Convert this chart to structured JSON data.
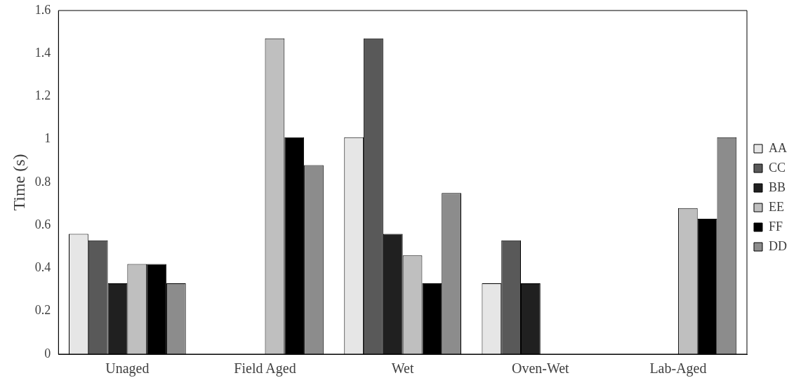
{
  "chart_data": {
    "type": "bar",
    "ylabel": "Time (s)",
    "categories": [
      "Unaged",
      "Field Aged",
      "Wet",
      "Oven-Wet",
      "Lab-Aged"
    ],
    "series": [
      {
        "name": "AA",
        "color": "#e6e6e6",
        "values": [
          0.56,
          null,
          1.01,
          0.33,
          null
        ]
      },
      {
        "name": "CC",
        "color": "#595959",
        "values": [
          0.53,
          null,
          1.47,
          0.53,
          null
        ]
      },
      {
        "name": "BB",
        "color": "#202020",
        "values": [
          0.33,
          null,
          0.56,
          0.33,
          null
        ]
      },
      {
        "name": "EE",
        "color": "#bfbfbf",
        "values": [
          0.42,
          1.47,
          0.46,
          null,
          0.68
        ]
      },
      {
        "name": "FF",
        "color": "#000000",
        "values": [
          0.42,
          1.01,
          0.33,
          null,
          0.63
        ]
      },
      {
        "name": "DD",
        "color": "#8c8c8c",
        "values": [
          0.33,
          0.88,
          0.75,
          null,
          1.01
        ]
      }
    ],
    "ylim": [
      0,
      1.6
    ],
    "yticks": [
      0,
      0.2,
      0.4,
      0.6,
      0.8,
      1,
      1.2,
      1.4,
      1.6
    ],
    "grid": false,
    "legend": "right"
  }
}
